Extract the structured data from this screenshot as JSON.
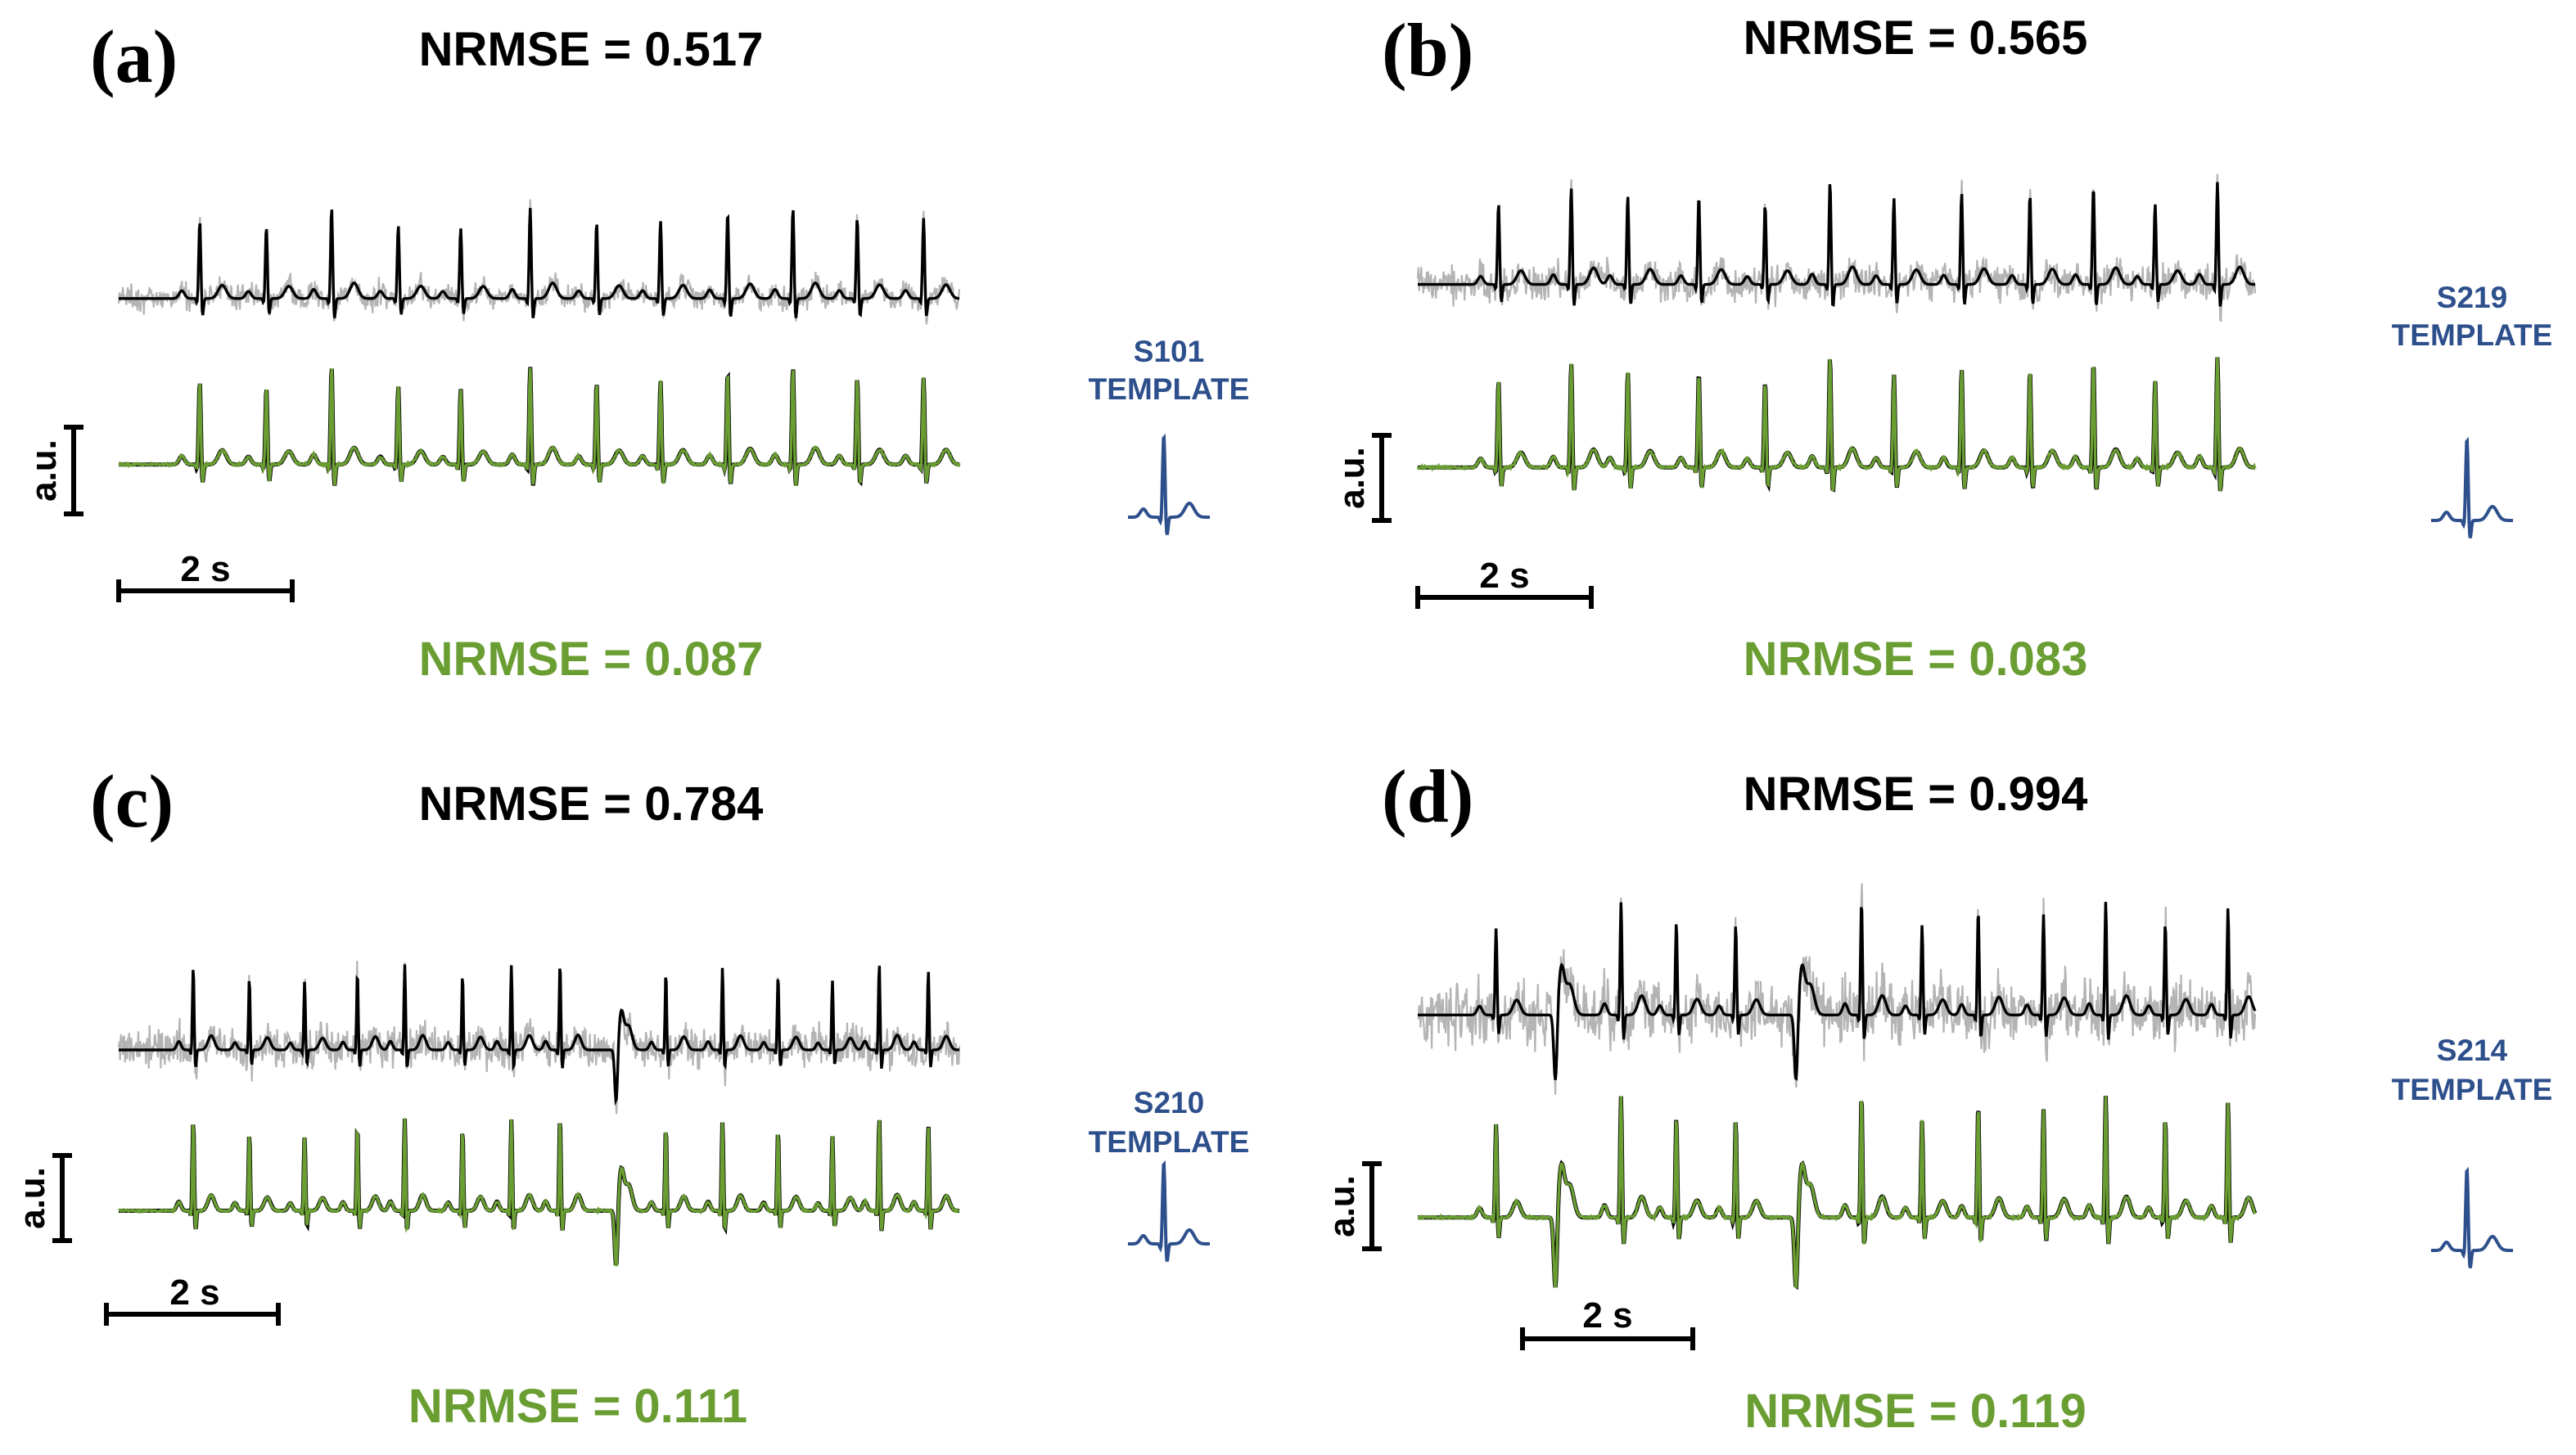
{
  "colors": {
    "noisy": "#b4b4b4",
    "clean": "#000000",
    "reconstructed": "#6a9e33",
    "template": "#2d4f8c",
    "noisy_nrmse_text": "#000000",
    "denoised_nrmse_text": "#6a9e33"
  },
  "chart_data": [
    {
      "type": "line",
      "panel_label": "(a)",
      "nrmse_noisy": "NRMSE = 0.517",
      "nrmse_denoised": "NRMSE = 0.087",
      "template_label": [
        "S101",
        "TEMPLATE"
      ],
      "scale_time": "2 s",
      "scale_amp": "a.u.",
      "beats": 12,
      "ectopic": []
    },
    {
      "type": "line",
      "panel_label": "(b)",
      "nrmse_noisy": "NRMSE = 0.565",
      "nrmse_denoised": "NRMSE = 0.083",
      "template_label": [
        "S219",
        "TEMPLATE"
      ],
      "scale_time": "2 s",
      "scale_amp": "a.u.",
      "beats": 12,
      "ectopic": []
    },
    {
      "type": "line",
      "panel_label": "(c)",
      "nrmse_noisy": "NRMSE = 0.784",
      "nrmse_denoised": "NRMSE = 0.111",
      "template_label": [
        "S210",
        "TEMPLATE"
      ],
      "scale_time": "2 s",
      "scale_amp": "a.u.",
      "beats": 15,
      "ectopic": [
        8
      ]
    },
    {
      "type": "line",
      "panel_label": "(d)",
      "nrmse_noisy": "NRMSE = 0.994",
      "nrmse_denoised": "NRMSE = 0.119",
      "template_label": [
        "S214",
        "TEMPLATE"
      ],
      "scale_time": "2 s",
      "scale_amp": "a.u.",
      "beats": 13,
      "ectopic": [
        1,
        5
      ]
    }
  ]
}
